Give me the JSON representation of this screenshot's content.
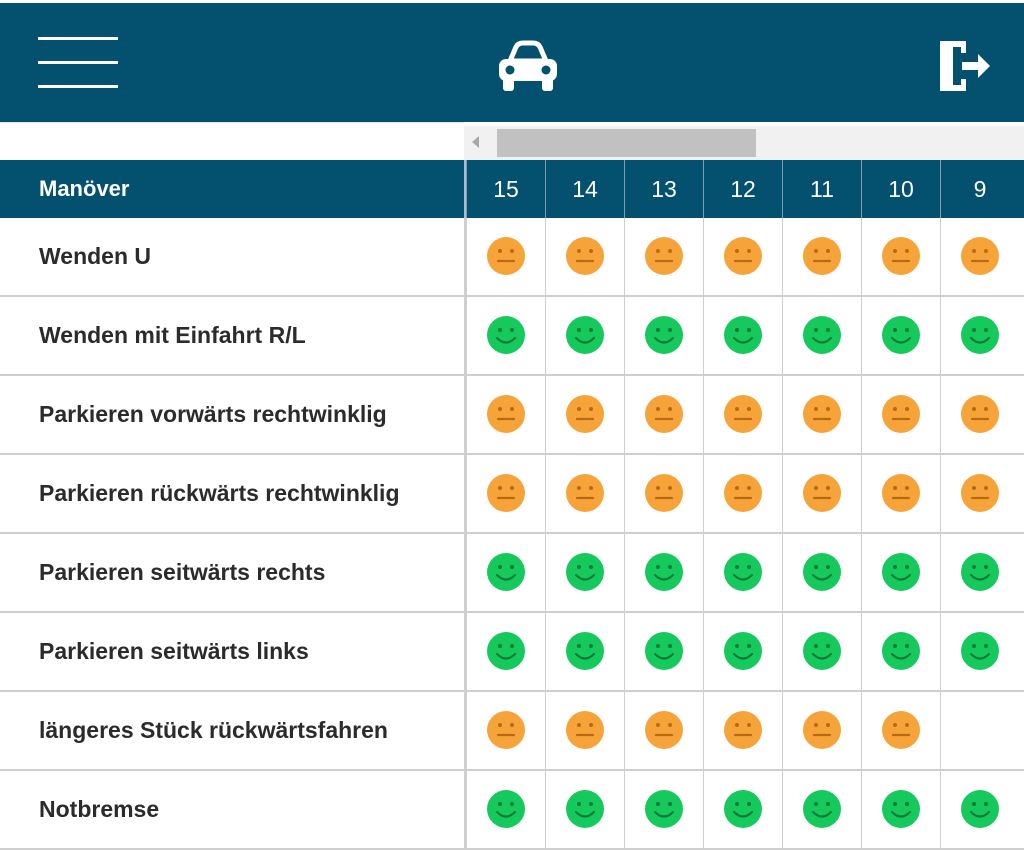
{
  "colors": {
    "header_bg": "#03506f",
    "ok_face": "#16c95d",
    "medium_face": "#f6a43a"
  },
  "header": {
    "menu_icon": "hamburger-menu-icon",
    "center_icon": "car-icon",
    "logout_icon": "logout-icon"
  },
  "table": {
    "header_label": "Manöver",
    "columns": [
      "15",
      "14",
      "13",
      "12",
      "11",
      "10",
      "9"
    ],
    "rows": [
      {
        "label": "Wenden U",
        "cells": [
          "medium",
          "medium",
          "medium",
          "medium",
          "medium",
          "medium",
          "medium"
        ]
      },
      {
        "label": "Wenden mit Einfahrt R/L",
        "cells": [
          "ok",
          "ok",
          "ok",
          "ok",
          "ok",
          "ok",
          "ok"
        ]
      },
      {
        "label": "Parkieren vorwärts rechtwinklig",
        "cells": [
          "medium",
          "medium",
          "medium",
          "medium",
          "medium",
          "medium",
          "medium"
        ]
      },
      {
        "label": "Parkieren rückwärts rechtwinklig",
        "cells": [
          "medium",
          "medium",
          "medium",
          "medium",
          "medium",
          "medium",
          "medium"
        ]
      },
      {
        "label": "Parkieren seitwärts rechts",
        "cells": [
          "ok",
          "ok",
          "ok",
          "ok",
          "ok",
          "ok",
          "ok"
        ]
      },
      {
        "label": "Parkieren seitwärts links",
        "cells": [
          "ok",
          "ok",
          "ok",
          "ok",
          "ok",
          "ok",
          "ok"
        ]
      },
      {
        "label": "längeres Stück rückwärtsfahren",
        "cells": [
          "medium",
          "medium",
          "medium",
          "medium",
          "medium",
          "medium",
          ""
        ]
      },
      {
        "label": "Notbremse",
        "cells": [
          "ok",
          "ok",
          "ok",
          "ok",
          "ok",
          "ok",
          "ok"
        ]
      }
    ]
  }
}
